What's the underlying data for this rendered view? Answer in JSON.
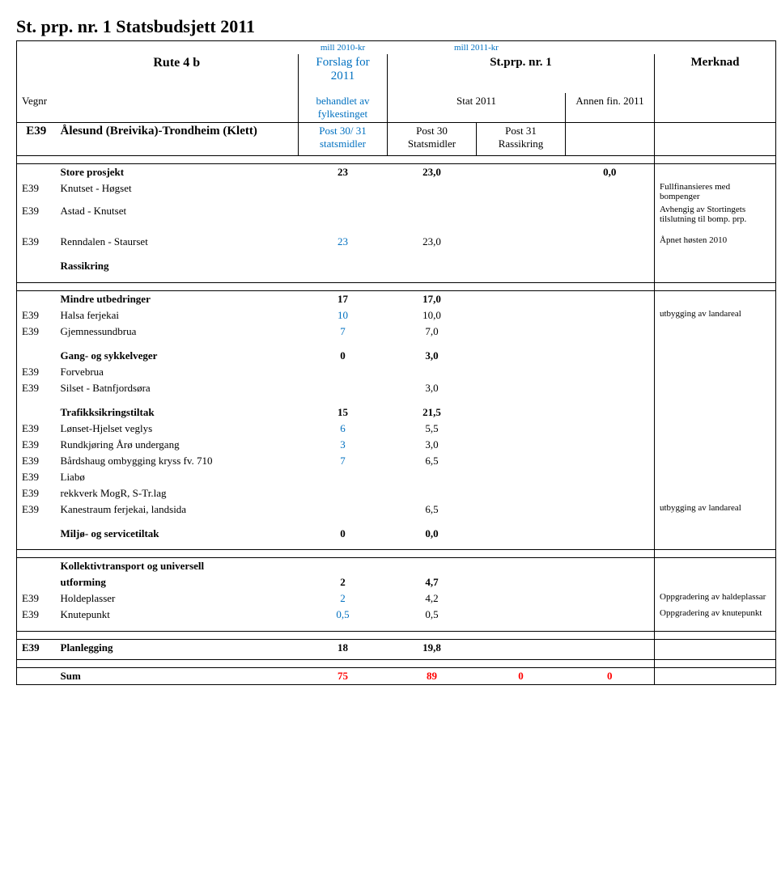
{
  "title": "St. prp. nr. 1 Statsbudsjett 2011",
  "mill2010": "mill 2010-kr",
  "mill2011": "mill 2011-kr",
  "route": "Rute 4 b",
  "forslag": "Forslag for 2011",
  "stprp": "St.prp. nr. 1",
  "merknad": "Merknad",
  "vegnr": "Vegnr",
  "behandlet": "behandlet av fylkestinget",
  "stat2011": "Stat  2011",
  "annenfin": "Annen fin. 2011",
  "route_code": "E39",
  "route_name": "Ålesund (Breivika)-Trondheim (Klett)",
  "post3031": "Post 30/ 31 statsmidler",
  "post30": "Post 30 Statsmidler",
  "post31": "Post 31 Rassikring",
  "store_prosjekt": "Store prosjekt",
  "store_c1": "23",
  "store_c2": "23,0",
  "store_c4": "0,0",
  "knutset_hogset": "Knutset - Høgset",
  "knutset_hogset_note": "Fullfinansieres med bompenger",
  "astad_knutset": "Astad - Knutset",
  "astad_knutset_note": "Avhengig av Stortingets tilslutning til bomp. prp.",
  "renndalen": "Renndalen - Staurset",
  "renndalen_c1": "23",
  "renndalen_c2": "23,0",
  "renndalen_note": "Åpnet høsten 2010",
  "rassikring": "Rassikring",
  "mindre": "Mindre utbedringer",
  "mindre_c1": "17",
  "mindre_c2": "17,0",
  "halsa": "Halsa ferjekai",
  "halsa_c1": "10",
  "halsa_c2": "10,0",
  "halsa_note": "utbygging av landareal",
  "gjemnes": "Gjemnessundbrua",
  "gjemnes_c1": "7",
  "gjemnes_c2": "7,0",
  "gang": "Gang- og sykkelveger",
  "gang_c1": "0",
  "gang_c2": "3,0",
  "forvebrua": "Forvebrua",
  "silset": "Silset - Batnfjordsøra",
  "silset_c2": "3,0",
  "trafikk": "Trafikksikringstiltak",
  "trafikk_c1": "15",
  "trafikk_c2": "21,5",
  "lonset": "Lønset-Hjelset veglys",
  "lonset_c1": "6",
  "lonset_c2": "5,5",
  "rundkj": "Rundkjøring Årø undergang",
  "rundkj_c1": "3",
  "rundkj_c2": "3,0",
  "bardshaug": "Bårdshaug ombygging kryss fv. 710",
  "bardshaug_c1": "7",
  "bardshaug_c2": "6,5",
  "liabo": "Liabø",
  "rekkverk": "rekkverk MogR, S-Tr.lag",
  "kanestraum": "Kanestraum ferjekai, landsida",
  "kanestraum_c2": "6,5",
  "kanestraum_note": "utbygging av landareal",
  "miljo": "Miljø- og servicetiltak",
  "miljo_c1": "0",
  "miljo_c2": "0,0",
  "kollektiv1": "Kollektivtransport og universell",
  "kollektiv2": "utforming",
  "kollektiv_c1": "2",
  "kollektiv_c2": "4,7",
  "holde": "Holdeplasser",
  "holde_c1": "2",
  "holde_c2": "4,2",
  "holde_note": "Oppgradering av haldeplassar",
  "knutepunkt": "Knutepunkt",
  "knutepunkt_c1": "0,5",
  "knutepunkt_c2": "0,5",
  "knutepunkt_note": "Oppgradering av knutepunkt",
  "planlegging": "Planlegging",
  "planlegging_c1": "18",
  "planlegging_c2": "19,8",
  "sum": "Sum",
  "sum_c1": "75",
  "sum_c2": "89",
  "sum_c3": "0",
  "sum_c4": "0"
}
